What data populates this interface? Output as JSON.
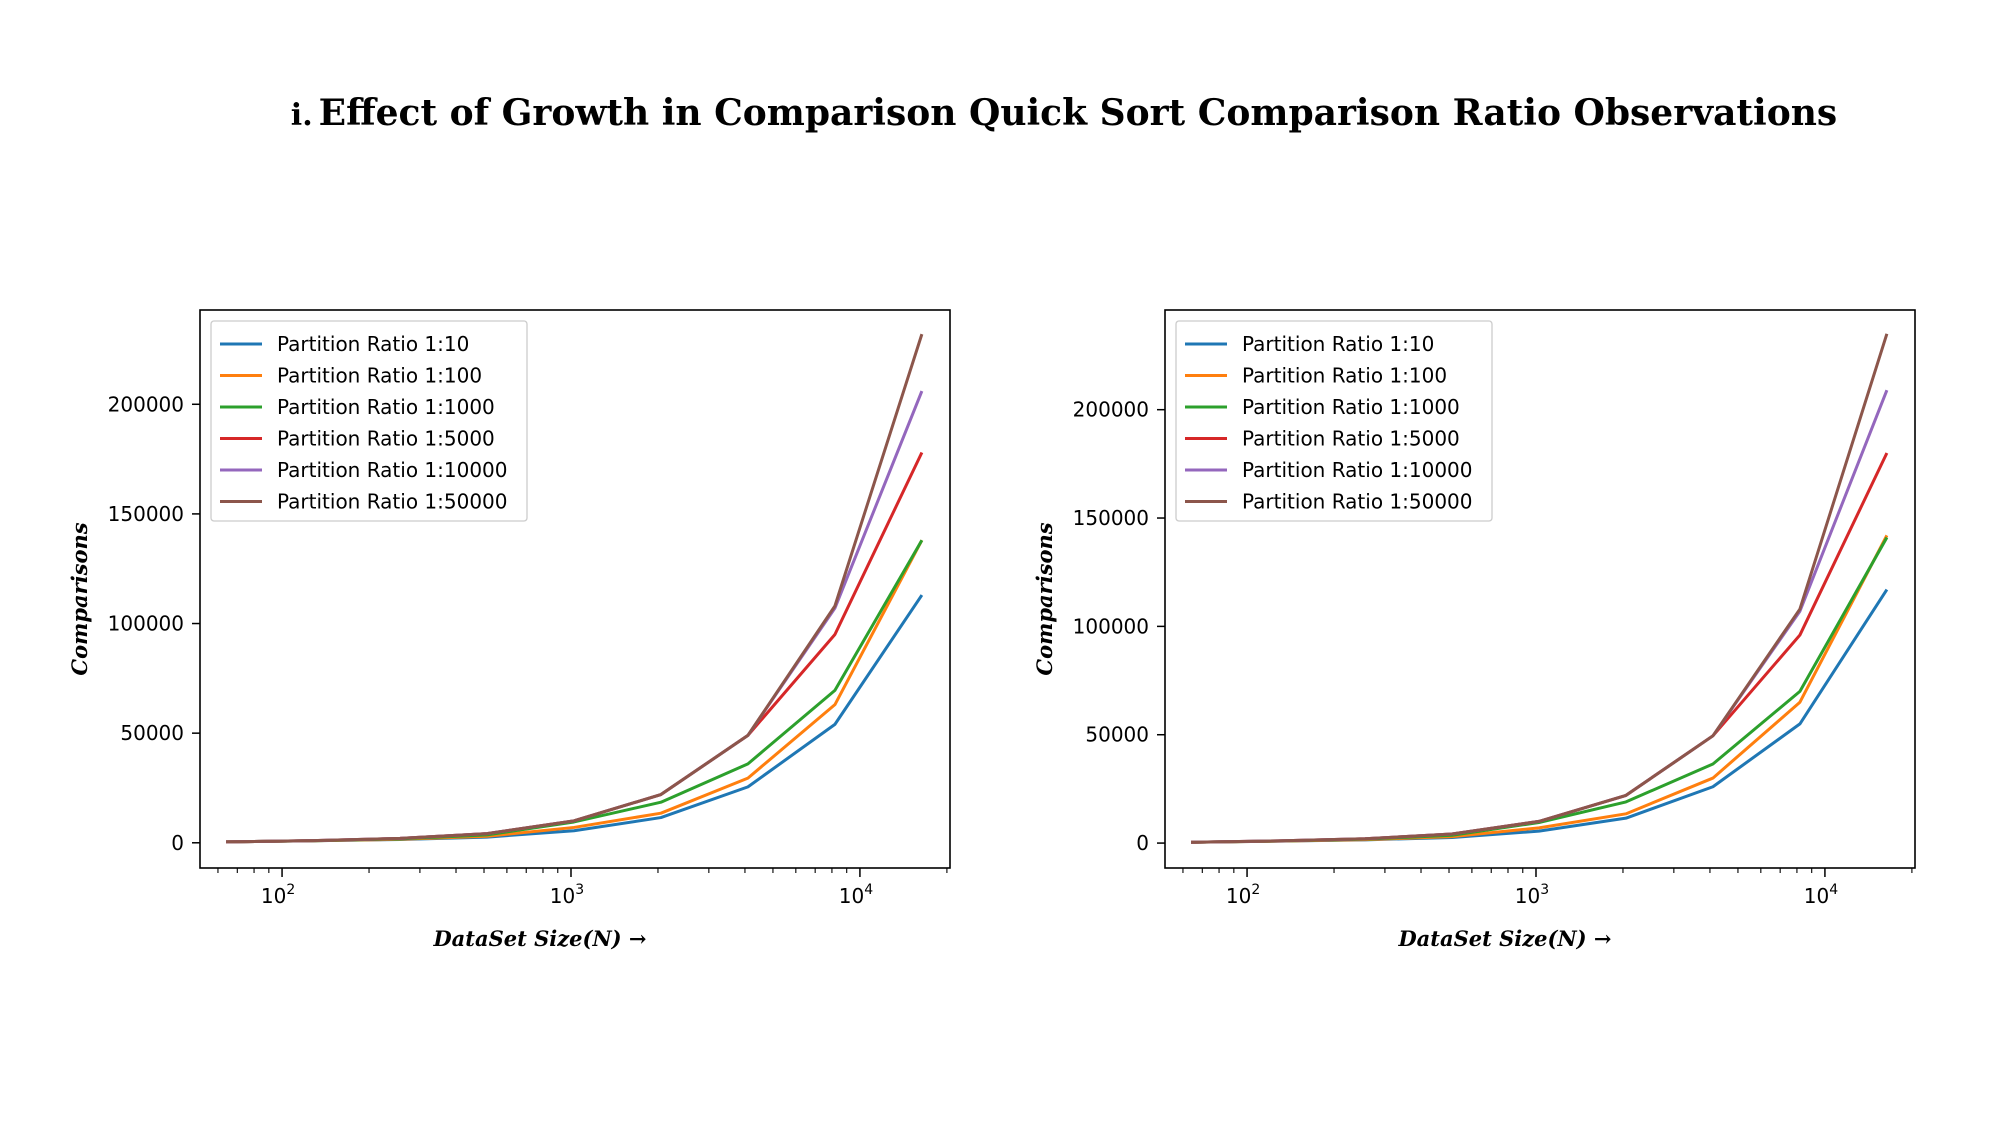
{
  "heading": {
    "number": "i.",
    "title": "Effect of Growth in Comparison Quick Sort Comparison Ratio Observations"
  },
  "chart_data": [
    {
      "type": "line",
      "xlabel": "DataSet Size(N) →",
      "ylabel": "Comparisons",
      "xscale": "log",
      "xlim": [
        52,
        20500
      ],
      "ylim": [
        -11500,
        243000
      ],
      "xticks": [
        100,
        1000,
        10000
      ],
      "xtick_labels": [
        {
          "base": "10",
          "exp": "2"
        },
        {
          "base": "10",
          "exp": "3"
        },
        {
          "base": "10",
          "exp": "4"
        }
      ],
      "yticks": [
        0,
        50000,
        100000,
        150000,
        200000
      ],
      "grid": false,
      "legend_position": "top-left",
      "x": [
        64,
        128,
        256,
        512,
        1024,
        2048,
        4096,
        8192,
        16384
      ],
      "series": [
        {
          "name": "Partition Ratio 1:10",
          "color": "#1f77b4",
          "values": [
            400,
            900,
            1500,
            2600,
            5500,
            11500,
            25500,
            54000,
            113000
          ]
        },
        {
          "name": "Partition Ratio 1:100",
          "color": "#ff7f0e",
          "values": [
            400,
            900,
            1600,
            3000,
            7000,
            13500,
            29500,
            63000,
            138000
          ]
        },
        {
          "name": "Partition Ratio 1:1000",
          "color": "#2ca02c",
          "values": [
            400,
            950,
            1800,
            3600,
            9500,
            18500,
            36000,
            69500,
            138000
          ]
        },
        {
          "name": "Partition Ratio 1:5000",
          "color": "#d62728",
          "values": [
            400,
            1000,
            2000,
            4200,
            10000,
            22000,
            49000,
            95000,
            178000
          ]
        },
        {
          "name": "Partition Ratio 1:10000",
          "color": "#9467bd",
          "values": [
            400,
            1000,
            2000,
            4200,
            10000,
            22000,
            49000,
            107000,
            206000
          ]
        },
        {
          "name": "Partition Ratio 1:50000",
          "color": "#8c564b",
          "values": [
            400,
            1000,
            2000,
            4200,
            10000,
            22000,
            49000,
            108000,
            232000
          ]
        }
      ]
    },
    {
      "type": "line",
      "xlabel": "DataSet Size(N) →",
      "ylabel": "Comparisons",
      "xscale": "log",
      "xlim": [
        52,
        20500
      ],
      "ylim": [
        -11500,
        246000
      ],
      "xticks": [
        100,
        1000,
        10000
      ],
      "xtick_labels": [
        {
          "base": "10",
          "exp": "2"
        },
        {
          "base": "10",
          "exp": "3"
        },
        {
          "base": "10",
          "exp": "4"
        }
      ],
      "yticks": [
        0,
        50000,
        100000,
        150000,
        200000
      ],
      "grid": false,
      "legend_position": "top-left",
      "x": [
        64,
        128,
        256,
        512,
        1024,
        2048,
        4096,
        8192,
        16384
      ],
      "series": [
        {
          "name": "Partition Ratio 1:10",
          "color": "#1f77b4",
          "values": [
            400,
            900,
            1500,
            2600,
            5500,
            11500,
            26000,
            55000,
            117000
          ]
        },
        {
          "name": "Partition Ratio 1:100",
          "color": "#ff7f0e",
          "values": [
            400,
            900,
            1600,
            3000,
            7000,
            13500,
            30000,
            65000,
            142000
          ]
        },
        {
          "name": "Partition Ratio 1:1000",
          "color": "#2ca02c",
          "values": [
            400,
            950,
            1800,
            3600,
            9500,
            19000,
            36500,
            70000,
            141000
          ]
        },
        {
          "name": "Partition Ratio 1:5000",
          "color": "#d62728",
          "values": [
            400,
            1000,
            2000,
            4200,
            10000,
            22000,
            49500,
            96000,
            180000
          ]
        },
        {
          "name": "Partition Ratio 1:10000",
          "color": "#9467bd",
          "values": [
            400,
            1000,
            2000,
            4200,
            10000,
            22000,
            49500,
            107000,
            209000
          ]
        },
        {
          "name": "Partition Ratio 1:50000",
          "color": "#8c564b",
          "values": [
            400,
            1000,
            2000,
            4200,
            10000,
            22000,
            49500,
            108000,
            235000
          ]
        }
      ]
    }
  ]
}
